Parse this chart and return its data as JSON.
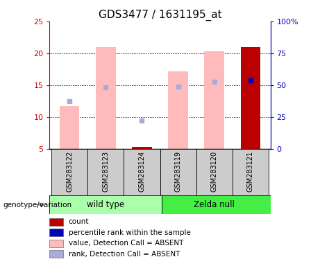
{
  "title": "GDS3477 / 1631195_at",
  "samples": [
    "GSM283122",
    "GSM283123",
    "GSM283124",
    "GSM283119",
    "GSM283120",
    "GSM283121"
  ],
  "bar_bottom": 5,
  "pink_bar_values": [
    11.7,
    21.0,
    5.3,
    17.2,
    20.3,
    21.0
  ],
  "pink_bar_color": "#ffbbbb",
  "red_bar_color": "#bb0000",
  "blue_sq_values": [
    12.5,
    14.7,
    9.5,
    14.8,
    15.5,
    15.8
  ],
  "blue_sq_absent_color": "#aaaadd",
  "blue_sq_present_color": "#0000bb",
  "ylim_left": [
    5,
    25
  ],
  "ylim_right": [
    0,
    100
  ],
  "yticks_left": [
    5,
    10,
    15,
    20,
    25
  ],
  "yticks_right": [
    0,
    25,
    50,
    75,
    100
  ],
  "ytick_labels_left": [
    "5",
    "10",
    "15",
    "20",
    "25"
  ],
  "ytick_labels_right": [
    "0",
    "25",
    "50",
    "75",
    "100%"
  ],
  "left_axis_color": "#cc0000",
  "right_axis_color": "#0000cc",
  "is_absent": [
    true,
    true,
    true,
    true,
    true,
    false
  ],
  "has_red_bar": [
    false,
    false,
    true,
    false,
    false,
    true
  ],
  "legend_labels": [
    "count",
    "percentile rank within the sample",
    "value, Detection Call = ABSENT",
    "rank, Detection Call = ABSENT"
  ],
  "legend_colors": [
    "#bb0000",
    "#0000bb",
    "#ffbbbb",
    "#aaaadd"
  ],
  "group_label": "genotype/variation",
  "wild_type_label": "wild type",
  "zelda_null_label": "Zelda null",
  "wild_type_color": "#aaffaa",
  "zelda_null_color": "#44ee44",
  "sample_box_color": "#cccccc"
}
